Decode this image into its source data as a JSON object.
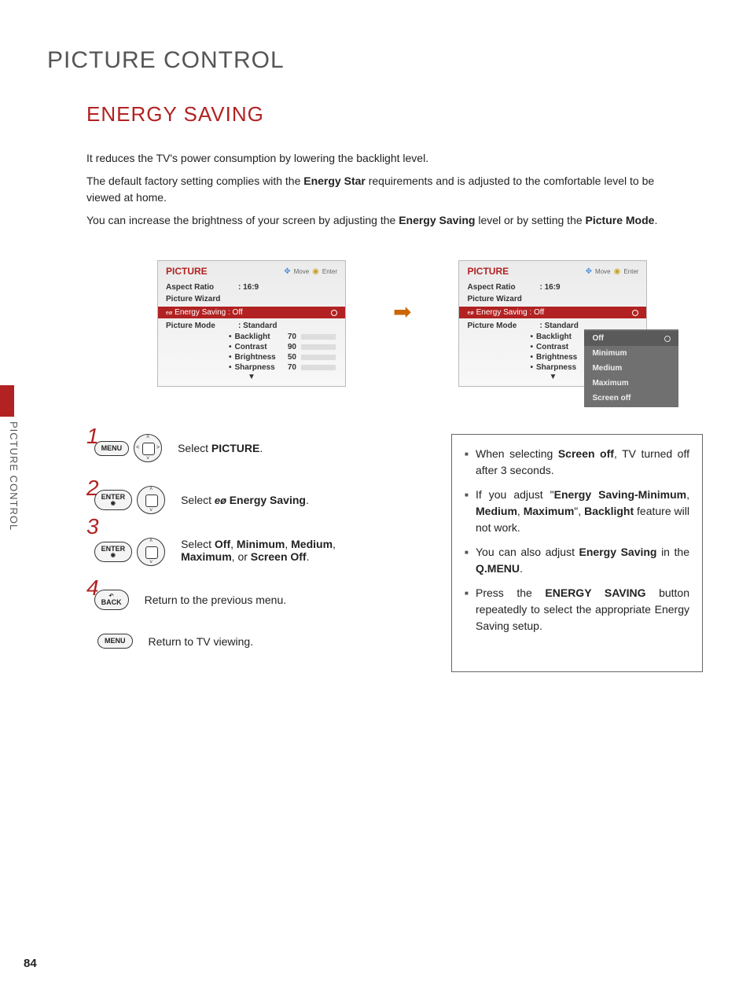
{
  "page_number": "84",
  "main_title": "PICTURE CONTROL",
  "sub_title": "ENERGY SAVING",
  "side_tab": "PICTURE CONTROL",
  "intro": {
    "p1": "It reduces the TV's power consumption by lowering the backlight level.",
    "p2a": "The default factory setting complies with the ",
    "p2b": "Energy Star",
    "p2c": " requirements and is adjusted to the comfortable level to be viewed at home.",
    "p3a": "You can increase the brightness of your screen by adjusting the ",
    "p3b": "Energy Saving",
    "p3c": " level or by setting the ",
    "p3d": "Picture Mode",
    "p3e": "."
  },
  "panel_hdr": {
    "title": "PICTURE",
    "move": "Move",
    "enter": "Enter"
  },
  "menu": {
    "aspect_label": "Aspect Ratio",
    "aspect_val": ": 16:9",
    "wizard_label": "Picture Wizard",
    "energy_label": "Energy Saving :  Off",
    "mode_label": "Picture Mode",
    "mode_val": ": Standard",
    "subs": [
      {
        "label": "Backlight",
        "val": "70",
        "pct": 70
      },
      {
        "label": "Contrast",
        "val": "90",
        "pct": 90
      },
      {
        "label": "Brightness",
        "val": "50",
        "pct": 50
      },
      {
        "label": "Sharpness",
        "val": "70",
        "pct": 70
      }
    ],
    "subs2": [
      "Backlight",
      "Contrast",
      "Brightness",
      "Sharpness"
    ]
  },
  "popup": [
    "Off",
    "Minimum",
    "Medium",
    "Maximum",
    "Screen off"
  ],
  "buttons": {
    "menu": "MENU",
    "enter": "ENTER",
    "back": "BACK"
  },
  "steps": {
    "s1a": "Select ",
    "s1b": "PICTURE",
    "s1c": ".",
    "s2a": "Select ",
    "s2b": "Energy Saving",
    "s2c": ".",
    "s3a": "Select ",
    "s3b": "Off",
    "s3c": ", ",
    "s3d": "Minimum",
    "s3e": ", ",
    "s3f": "Medium",
    "s3g": ", ",
    "s3h": "Maximum",
    "s3i": ", or ",
    "s3j": "Screen Off",
    "s3k": ".",
    "s4": "Return to the previous menu.",
    "s5": "Return to TV viewing."
  },
  "notes": {
    "n1a": "When selecting ",
    "n1b": "Screen off",
    "n1c": ", TV turned off after 3 seconds.",
    "n2a": "If you adjust \"",
    "n2b": "Energy Saving-Minimum",
    "n2c": ", ",
    "n2d": "Medium",
    "n2e": ", ",
    "n2f": "Maximum",
    "n2g": "\", ",
    "n2h": "Backlight",
    "n2i": " feature will not work.",
    "n3a": "You can also adjust ",
    "n3b": "Energy Saving",
    "n3c": " in the ",
    "n3d": "Q.MENU",
    "n3e": ".",
    "n4a": "Press the ",
    "n4b": "ENERGY SAVING",
    "n4c": " button repeatedly to select the appropriate Energy Saving setup."
  },
  "colors": {
    "accent": "#b22222",
    "text": "#222",
    "panel_bg": "#efefef",
    "popup_bg": "#707070"
  }
}
